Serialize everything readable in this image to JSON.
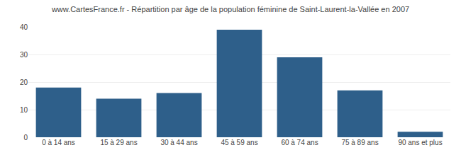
{
  "chart_data": {
    "type": "bar",
    "title": "www.CartesFrance.fr - Répartition par âge de la population féminine de Saint-Laurent-la-Vallée en 2007",
    "categories": [
      "0 à 14 ans",
      "15 à 29 ans",
      "30 à 44 ans",
      "45 à 59 ans",
      "60 à 74 ans",
      "75 à 89 ans",
      "90 ans et plus"
    ],
    "values": [
      18,
      14,
      16,
      39,
      29,
      17,
      2
    ],
    "color": "#2e5f8a",
    "ylim": [
      0,
      40
    ],
    "yticks": [
      0,
      10,
      20,
      30,
      40
    ],
    "grid": true
  }
}
